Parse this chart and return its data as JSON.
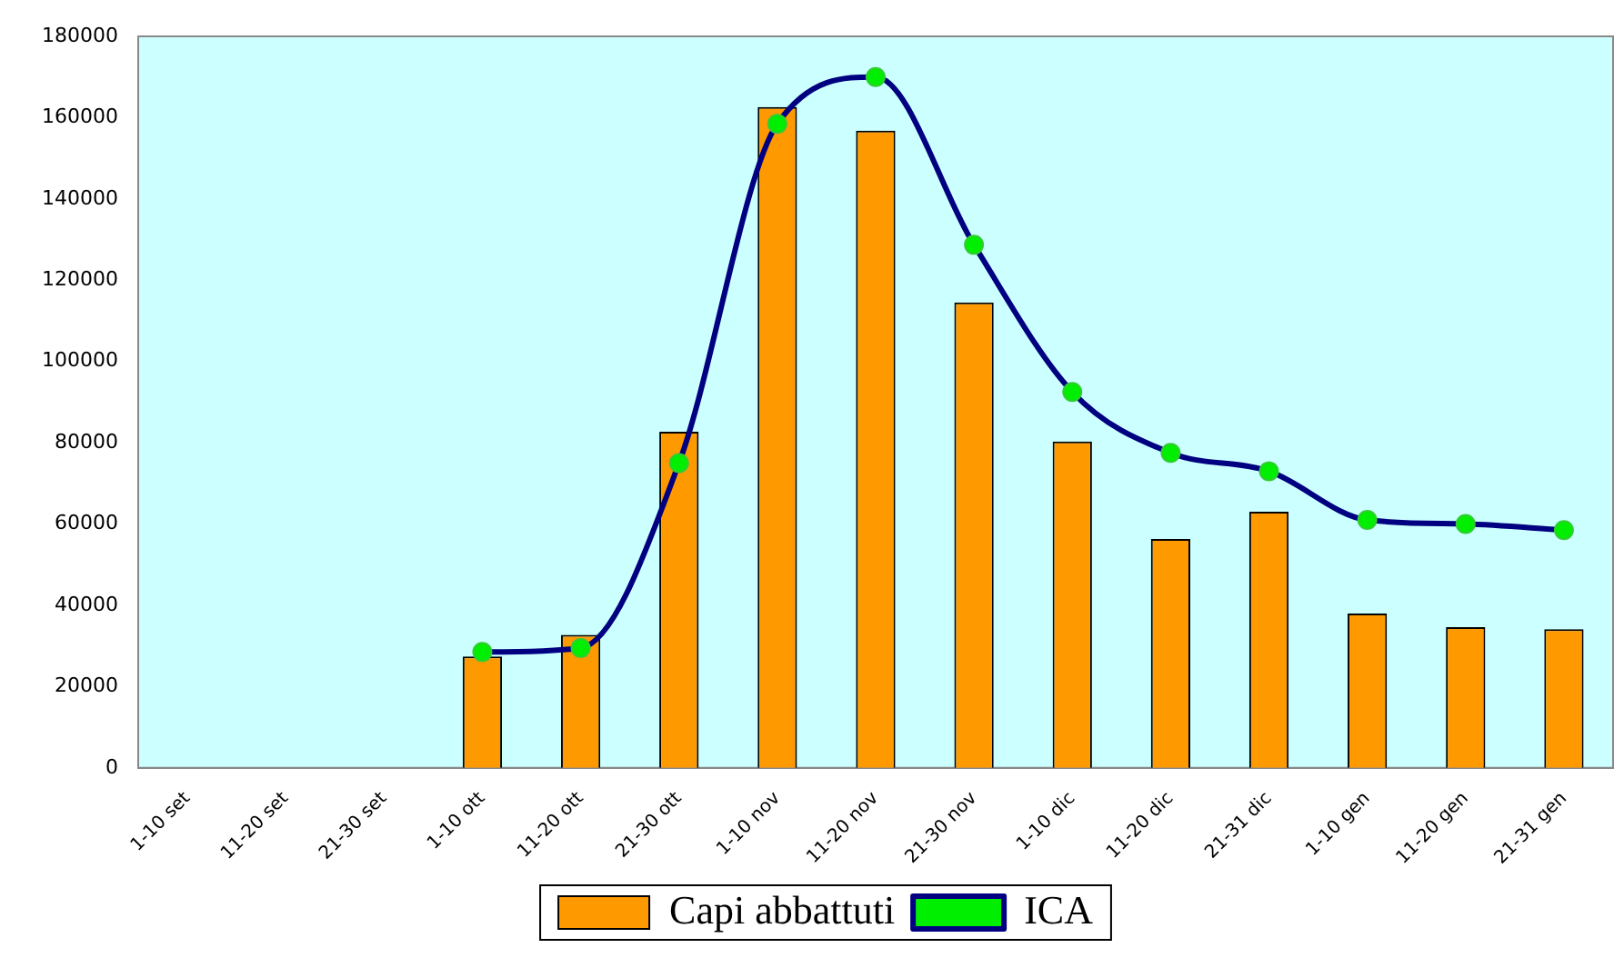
{
  "chart_data": {
    "type": "bar",
    "categories": [
      "1-10 set",
      "11-20 set",
      "21-30 set",
      "1-10 ott",
      "11-20 ott",
      "21-30 ott",
      "1-10 nov",
      "11-20 nov",
      "21-30 nov",
      "1-10 dic",
      "11-20 dic",
      "21-31 dic",
      "1-10 gen",
      "11-20 gen",
      "21-31 gen"
    ],
    "series": [
      {
        "name": "Capi abbattuti",
        "color": "#ff9900",
        "values": [
          null,
          null,
          null,
          27400,
          32700,
          82700,
          162600,
          156800,
          114500,
          80300,
          56300,
          63000,
          38000,
          34600,
          34100
        ]
      },
      {
        "name": "ICA",
        "type": "line",
        "color": "#000080",
        "marker": "circle",
        "values": [
          null,
          null,
          null,
          28500,
          29500,
          75000,
          158500,
          170000,
          128700,
          92500,
          77500,
          73000,
          61000,
          60000,
          58500
        ]
      }
    ],
    "ylim": [
      0,
      180000
    ],
    "yticks": [
      0,
      20000,
      40000,
      60000,
      80000,
      100000,
      120000,
      140000,
      160000,
      180000
    ],
    "grid": false,
    "legend": "bottom"
  }
}
